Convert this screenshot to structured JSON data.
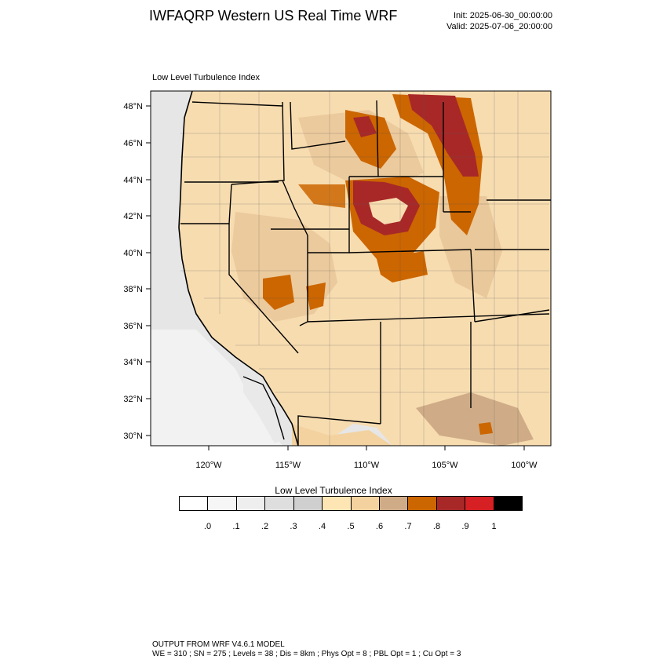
{
  "header": {
    "title": "IWFAQRP Western US Real Time WRF",
    "init": "Init: 2025-06-30_00:00:00",
    "valid": "Valid: 2025-07-06_20:00:00"
  },
  "map": {
    "subtitle": "Low Level Turbulence Index",
    "lat_labels": [
      "48°N",
      "46°N",
      "44°N",
      "42°N",
      "40°N",
      "38°N",
      "36°N",
      "34°N",
      "32°N",
      "30°N"
    ],
    "lon_labels": [
      "120°W",
      "115°W",
      "110°W",
      "105°W",
      "100°W"
    ]
  },
  "colorbar": {
    "title": "Low Level Turbulence Index",
    "colors": [
      "#ffffff",
      "#f6f6f6",
      "#eeeeee",
      "#dedede",
      "#cfcfcf",
      "#fde5b4",
      "#f3d29f",
      "#cfac87",
      "#cc6600",
      "#a82828",
      "#d62024",
      "#000000"
    ],
    "labels": [
      ".0",
      ".1",
      ".2",
      ".3",
      ".4",
      ".5",
      ".6",
      ".7",
      ".8",
      ".9",
      "1"
    ]
  },
  "footer": {
    "line1": "OUTPUT FROM WRF V4.6.1 MODEL",
    "line2": "WE = 310 ; SN = 275 ; Levels = 38 ; Dis = 8km ; Phys Opt = 8 ; PBL Opt = 1 ; Cu Opt = 3"
  }
}
